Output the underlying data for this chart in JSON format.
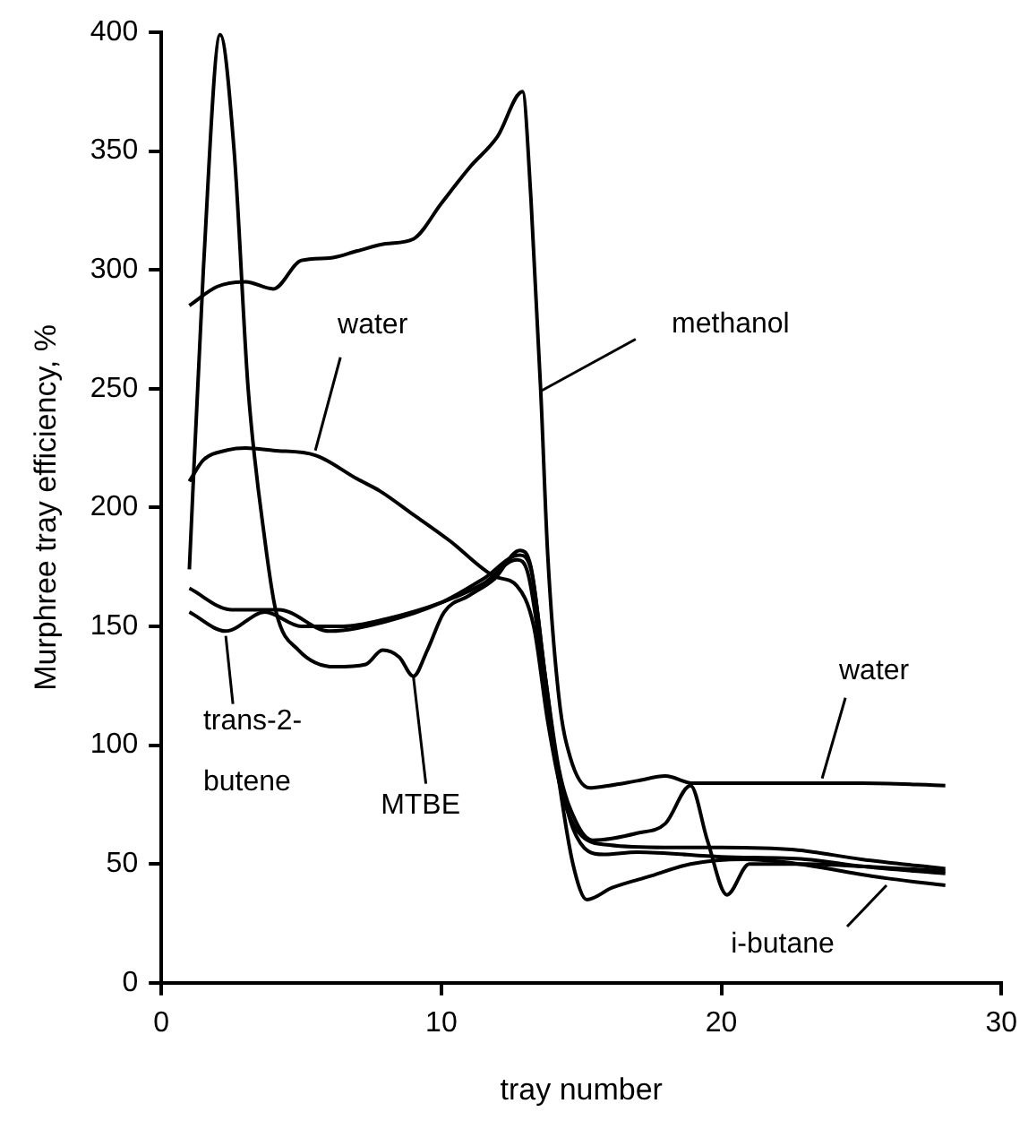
{
  "chart_data": {
    "type": "line",
    "xlabel": "tray number",
    "ylabel": "Murphree tray efficiency, %",
    "xlim": [
      0,
      30
    ],
    "xticks": [
      0,
      10,
      20,
      30
    ],
    "ylim": [
      0,
      400
    ],
    "yticks": [
      0,
      50,
      100,
      150,
      200,
      250,
      300,
      350,
      400
    ],
    "grid": false,
    "legend": false,
    "marker": "none",
    "line_style": "solid",
    "series": [
      {
        "color": "#000000",
        "x": [
          1,
          2,
          3,
          4,
          5,
          6,
          7,
          8,
          9,
          10,
          11,
          12,
          12.9,
          13.2,
          13.55,
          13.8,
          14.2,
          14.6,
          15.3,
          16,
          17,
          18,
          19,
          20,
          22,
          25,
          28
        ],
        "values": [
          285,
          293,
          295,
          292,
          304,
          305,
          308,
          311,
          313,
          328,
          343,
          356,
          375,
          330,
          249,
          180,
          120,
          95,
          82,
          83,
          85,
          87,
          84,
          84,
          84,
          84,
          83
        ]
      },
      {
        "color": "#000000",
        "x": [
          1,
          1.5,
          2.3,
          3,
          4,
          5.5,
          7,
          7.8,
          9,
          10.3,
          11.9,
          12.7,
          13.3,
          13.8,
          14.3,
          15,
          16,
          18,
          20,
          22.6,
          25,
          28
        ],
        "values": [
          211,
          220,
          224,
          225,
          224,
          222,
          212,
          207,
          197,
          186,
          171,
          167,
          150,
          110,
          80,
          62,
          58,
          57,
          57,
          56,
          52,
          48
        ]
      },
      {
        "color": "#000000",
        "x": [
          1,
          1.5,
          2.1,
          2.6,
          3.1,
          3.7,
          4.1,
          4.9,
          6.2,
          7.3,
          7.9,
          8.5,
          9,
          9.5,
          10.1,
          11,
          11.9,
          12.8,
          13.2,
          13.7,
          14.2,
          14.7,
          15.2,
          16.1,
          17.5,
          18.9,
          20.8,
          22.1,
          25.9,
          28
        ],
        "values": [
          174,
          300,
          399,
          350,
          250,
          186,
          156,
          140,
          133,
          134,
          140,
          137,
          129,
          140,
          156,
          163,
          170,
          182,
          175,
          130,
          85,
          50,
          35,
          40,
          45,
          50,
          52,
          51,
          44,
          41
        ]
      },
      {
        "color": "#000000",
        "x": [
          1,
          2.5,
          4.2,
          6,
          8,
          10,
          11.5,
          12.8,
          13.2,
          13.7,
          14.2,
          14.8,
          15.4,
          17,
          18,
          18.9,
          19.5,
          20.2,
          21,
          23,
          25,
          28
        ],
        "values": [
          166,
          157,
          157,
          148,
          152,
          160,
          170,
          180,
          174,
          130,
          90,
          68,
          60,
          63,
          67,
          83,
          60,
          37,
          50,
          50,
          49,
          47
        ]
      },
      {
        "color": "#000000",
        "x": [
          1,
          2.3,
          3.7,
          5,
          6.5,
          8,
          10,
          11.5,
          12.7,
          13.1,
          13.6,
          14.1,
          14.7,
          15.8,
          17,
          20,
          23,
          25,
          28
        ],
        "values": [
          156,
          148,
          156,
          150,
          150,
          153,
          160,
          168,
          178,
          172,
          135,
          95,
          65,
          54,
          55,
          53,
          52,
          49,
          46
        ]
      }
    ],
    "annotations": [
      {
        "text": "water",
        "x": 5.5,
        "y": 224
      },
      {
        "text": "methanol",
        "x": 13.55,
        "y": 249
      },
      {
        "text": "water",
        "x": 23.6,
        "y": 86
      },
      {
        "text": "trans-2-butene",
        "x": 2.3,
        "y": 146
      },
      {
        "text": "MTBE",
        "x": 9,
        "y": 129
      },
      {
        "text": "i-butane",
        "x": 25.9,
        "y": 41
      }
    ]
  }
}
